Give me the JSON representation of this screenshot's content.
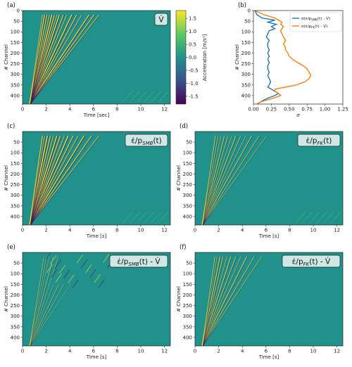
{
  "panels": [
    {
      "id": "a",
      "label": "(a)",
      "badge": "V̇",
      "xlabel": "Time [sec]",
      "ylabel": "# Channel",
      "xlim": [
        0,
        12.5
      ],
      "ylim": [
        440,
        0
      ],
      "xticks": [
        "0",
        "2",
        "4",
        "6",
        "8",
        "10",
        "12"
      ],
      "xtick_vals": [
        0,
        2,
        4,
        6,
        8,
        10,
        12
      ],
      "yticks": [
        "0",
        "50",
        "100",
        "150",
        "200",
        "250",
        "300",
        "350",
        "400"
      ],
      "ytick_vals": [
        0,
        50,
        100,
        150,
        200,
        250,
        300,
        350,
        400
      ]
    },
    {
      "id": "c",
      "label": "(c)",
      "badge": "ε̇/p",
      "badge_sub": "SMB",
      "badge_tail": "(t)",
      "xlabel": "Time [s]",
      "ylabel": "# Channel",
      "xlim": [
        0,
        12.5
      ],
      "ylim": [
        440,
        0
      ],
      "xticks": [
        "0",
        "2",
        "4",
        "6",
        "8",
        "10",
        "12"
      ],
      "xtick_vals": [
        0,
        2,
        4,
        6,
        8,
        10,
        12
      ],
      "yticks": [
        "50",
        "100",
        "150",
        "200",
        "250",
        "300",
        "350",
        "400"
      ],
      "ytick_vals": [
        50,
        100,
        150,
        200,
        250,
        300,
        350,
        400
      ]
    },
    {
      "id": "d",
      "label": "(d)",
      "badge": "ε̇/p",
      "badge_sub": "FK",
      "badge_tail": "(t)",
      "xlabel": "Time [s]",
      "ylabel": "# Channel",
      "xlim": [
        0,
        12.5
      ],
      "ylim": [
        440,
        0
      ],
      "xticks": [
        "0",
        "2",
        "4",
        "6",
        "8",
        "10",
        "12"
      ],
      "xtick_vals": [
        0,
        2,
        4,
        6,
        8,
        10,
        12
      ],
      "yticks": [
        "50",
        "100",
        "150",
        "200",
        "250",
        "300",
        "350",
        "400"
      ],
      "ytick_vals": [
        50,
        100,
        150,
        200,
        250,
        300,
        350,
        400
      ]
    },
    {
      "id": "e",
      "label": "(e)",
      "badge": "ε̇/p",
      "badge_sub": "SMB",
      "badge_tail": "(t) - V̇",
      "xlabel": "Time [s]",
      "ylabel": "# Channel",
      "xlim": [
        0,
        12.5
      ],
      "ylim": [
        440,
        0
      ],
      "xticks": [
        "0",
        "2",
        "4",
        "6",
        "8",
        "10",
        "12"
      ],
      "xtick_vals": [
        0,
        2,
        4,
        6,
        8,
        10,
        12
      ],
      "yticks": [
        "50",
        "100",
        "150",
        "200",
        "250",
        "300",
        "350",
        "400"
      ],
      "ytick_vals": [
        50,
        100,
        150,
        200,
        250,
        300,
        350,
        400
      ]
    },
    {
      "id": "f",
      "label": "(f)",
      "badge": "ε̇/p",
      "badge_sub": "FK",
      "badge_tail": "(t) - V̇",
      "xlabel": "Time [s]",
      "ylabel": "# Channel",
      "xlim": [
        0,
        12.5
      ],
      "ylim": [
        440,
        0
      ],
      "xticks": [
        "0",
        "2",
        "4",
        "6",
        "8",
        "10",
        "12"
      ],
      "xtick_vals": [
        0,
        2,
        4,
        6,
        8,
        10,
        12
      ],
      "yticks": [
        "50",
        "100",
        "150",
        "200",
        "250",
        "300",
        "350",
        "400"
      ],
      "ytick_vals": [
        50,
        100,
        150,
        200,
        250,
        300,
        350,
        400
      ]
    }
  ],
  "colorbar": {
    "label": "Acceleration [m/s²]",
    "range": [
      -1.8,
      1.8
    ],
    "ticks": [
      "1.5",
      "1.0",
      "0.5",
      "0.0",
      "-0.5",
      "-1.0",
      "-1.5"
    ],
    "tick_vals": [
      1.5,
      1.0,
      0.5,
      0.0,
      -0.5,
      -1.0,
      -1.5
    ],
    "colors": [
      "#440154",
      "#3b528b",
      "#21918c",
      "#5ec962",
      "#fde725"
    ]
  },
  "chart_data": {
    "type": "line",
    "panel_label": "(b)",
    "xlabel": "σ",
    "ylabel": "# Channel",
    "xlim": [
      0,
      1.25
    ],
    "ylim": [
      440,
      0
    ],
    "xticks": [
      "0.00",
      "0.25",
      "0.50",
      "0.75",
      "1.00",
      "1.25"
    ],
    "xtick_vals": [
      0,
      0.25,
      0.5,
      0.75,
      1.0,
      1.25
    ],
    "yticks": [
      "0",
      "50",
      "100",
      "150",
      "200",
      "250",
      "300",
      "350",
      "400"
    ],
    "ytick_vals": [
      0,
      50,
      100,
      150,
      200,
      250,
      300,
      350,
      400
    ],
    "legend_position": "top-right",
    "series": [
      {
        "name": "σ(ε̇/p_SMB(t) - V̇)",
        "legend_main": "σ(ε̇/p",
        "legend_sub": "SMB",
        "legend_tail": "(t) - V̇)",
        "color": "#1f77b4",
        "x": [
          0.02,
          0.05,
          0.12,
          0.3,
          0.2,
          0.32,
          0.25,
          0.3,
          0.22,
          0.2,
          0.18,
          0.22,
          0.2,
          0.2,
          0.22,
          0.2,
          0.22,
          0.2,
          0.22,
          0.2,
          0.2,
          0.22,
          0.2,
          0.22,
          0.24,
          0.22,
          0.2,
          0.25,
          0.3,
          0.35,
          0.3,
          0.22,
          0.15,
          0.1,
          0.05
        ],
        "y": [
          0,
          20,
          35,
          45,
          55,
          65,
          75,
          85,
          95,
          110,
          125,
          140,
          155,
          170,
          185,
          200,
          215,
          230,
          245,
          260,
          275,
          290,
          305,
          320,
          335,
          350,
          360,
          370,
          380,
          390,
          400,
          410,
          420,
          430,
          440
        ]
      },
      {
        "name": "σ(ε̇/p_FK(t) - V̇)",
        "legend_main": "σ(ε̇/p",
        "legend_sub": "FK",
        "legend_tail": "(t) - V̇)",
        "color": "#ff7f0e",
        "x": [
          0.02,
          0.15,
          0.3,
          0.35,
          0.4,
          0.38,
          0.42,
          0.4,
          0.38,
          0.4,
          0.42,
          0.45,
          0.42,
          0.44,
          0.45,
          0.48,
          0.5,
          0.55,
          0.62,
          0.7,
          0.75,
          0.78,
          0.8,
          0.78,
          0.72,
          0.6,
          0.45,
          0.3,
          0.3,
          0.35,
          0.38,
          0.3,
          0.2,
          0.1,
          0.05
        ],
        "y": [
          0,
          20,
          35,
          45,
          55,
          65,
          75,
          85,
          95,
          110,
          125,
          140,
          155,
          170,
          185,
          200,
          215,
          230,
          245,
          260,
          275,
          290,
          305,
          320,
          335,
          350,
          360,
          370,
          380,
          390,
          400,
          410,
          420,
          430,
          440
        ]
      }
    ]
  }
}
